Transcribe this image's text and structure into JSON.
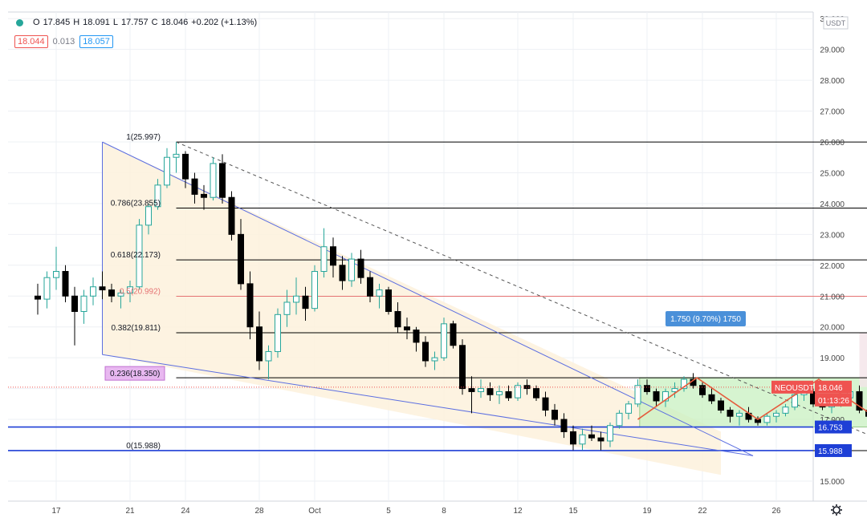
{
  "legend": {
    "o_label": "O",
    "o": "17.845",
    "h_label": "H",
    "h": "18.091",
    "l_label": "L",
    "l": "17.757",
    "c_label": "C",
    "c": "18.046",
    "change": "+0.202 (+1.13%)"
  },
  "bid_ask": {
    "bid": "18.044",
    "spread": "0.013",
    "ask": "18.057"
  },
  "currency": "USDT",
  "price_tags": {
    "symbol": "NEOUSDT",
    "price": "18.046",
    "countdown": "01:13:26",
    "line_upper": "16.753",
    "line_lower": "15.988"
  },
  "measure_label": "1.750 (9.70%) 1750",
  "fib_labels": [
    {
      "value": 25.997,
      "text": "1(25.997)"
    },
    {
      "value": 23.855,
      "text": "0.786(23.855)"
    },
    {
      "value": 22.173,
      "text": "0.618(22.173)"
    },
    {
      "value": 20.992,
      "text": "0.5(20.992)"
    },
    {
      "value": 19.811,
      "text": "0.382(19.811)"
    },
    {
      "value": 18.35,
      "text": "0.236(18.350)"
    },
    {
      "value": 15.988,
      "text": "0(15.988)"
    }
  ],
  "colors": {
    "up": "#26a69a",
    "down": "#000000",
    "fib": "#000000",
    "fib_mid": "#e57373",
    "blue_line": "#1e3fd6",
    "wedge_fill": "#fdf1dc",
    "rect_fill": "#c8f0c0",
    "rect_border": "#9acb8c",
    "zigzag": "#e55b3c",
    "price_tag": "#ef5350",
    "hline_tag": "#1e3fd6",
    "measure_fill": "#f4e4e8",
    "measure_label_bg": "#4a90d9"
  },
  "chart_data": {
    "type": "candlestick",
    "ylim": [
      14.9,
      30.2
    ],
    "y_ticks": [
      "15.000",
      "16.000",
      "17.000",
      "18.000",
      "19.000",
      "20.000",
      "21.000",
      "22.000",
      "23.000",
      "24.000",
      "25.000",
      "26.000",
      "27.000",
      "28.000",
      "29.000",
      "30.000"
    ],
    "x_ticks": [
      "17",
      "21",
      "24",
      "28",
      "Oct",
      "5",
      "8",
      "12",
      "15",
      "19",
      "22",
      "26"
    ],
    "series": [
      {
        "name": "NEOUSDT",
        "values": [
          [
            16,
            21.0,
            21.4,
            20.4,
            20.9
          ],
          [
            16.5,
            20.9,
            21.8,
            20.6,
            21.6
          ],
          [
            17,
            21.6,
            22.6,
            21.2,
            21.8
          ],
          [
            17.5,
            21.8,
            22.0,
            20.8,
            21.0
          ],
          [
            18,
            21.0,
            21.3,
            19.4,
            20.5
          ],
          [
            18.5,
            20.5,
            21.2,
            20.1,
            21.0
          ],
          [
            19,
            21.0,
            21.6,
            20.7,
            21.3
          ],
          [
            19.5,
            21.3,
            21.8,
            20.9,
            21.2
          ],
          [
            20,
            21.2,
            21.4,
            20.8,
            21.0
          ],
          [
            20.5,
            21.0,
            21.2,
            20.6,
            21.1
          ],
          [
            21,
            21.1,
            21.5,
            20.8,
            21.3
          ],
          [
            21.5,
            21.3,
            23.5,
            21.2,
            23.3
          ],
          [
            22,
            23.3,
            24.0,
            23.0,
            23.9
          ],
          [
            22.5,
            23.9,
            24.8,
            23.8,
            24.6
          ],
          [
            23,
            24.6,
            25.8,
            24.5,
            25.5
          ],
          [
            23.5,
            25.5,
            26.0,
            25.0,
            25.6
          ],
          [
            24,
            25.6,
            25.7,
            24.5,
            24.8
          ],
          [
            24.5,
            24.8,
            25.0,
            24.0,
            24.3
          ],
          [
            25,
            24.3,
            24.6,
            23.8,
            24.2
          ],
          [
            25.5,
            24.2,
            25.5,
            24.1,
            25.3
          ],
          [
            26,
            25.3,
            25.6,
            24.0,
            24.2
          ],
          [
            26.5,
            24.2,
            24.4,
            22.8,
            23.0
          ],
          [
            27,
            23.0,
            23.5,
            21.2,
            21.4
          ],
          [
            27.5,
            21.4,
            21.8,
            19.6,
            20.0
          ],
          [
            28,
            20.0,
            20.5,
            18.6,
            18.9
          ],
          [
            28.5,
            18.9,
            19.4,
            18.3,
            19.2
          ],
          [
            29,
            19.2,
            20.6,
            19.0,
            20.4
          ],
          [
            29.5,
            20.4,
            21.2,
            20.0,
            20.8
          ],
          [
            30,
            20.8,
            21.6,
            20.4,
            21.0
          ],
          [
            30.5,
            21.0,
            21.3,
            20.2,
            20.6
          ],
          [
            31,
            20.6,
            22.0,
            20.5,
            21.8
          ],
          [
            31.5,
            21.8,
            23.2,
            21.6,
            22.6
          ],
          [
            32,
            22.6,
            22.9,
            21.6,
            22.0
          ],
          [
            32.5,
            22.0,
            22.3,
            21.2,
            21.5
          ],
          [
            33,
            21.5,
            22.4,
            21.3,
            22.2
          ],
          [
            33.5,
            22.2,
            22.5,
            21.4,
            21.6
          ],
          [
            34,
            21.6,
            21.8,
            20.8,
            21.0
          ],
          [
            34.5,
            21.0,
            21.4,
            20.6,
            21.2
          ],
          [
            35,
            21.2,
            21.3,
            20.4,
            20.5
          ],
          [
            35.5,
            20.5,
            20.8,
            19.8,
            20.0
          ],
          [
            36,
            20.0,
            20.3,
            19.6,
            19.9
          ],
          [
            36.5,
            19.9,
            20.0,
            19.2,
            19.5
          ],
          [
            37,
            19.5,
            19.7,
            18.7,
            18.9
          ],
          [
            37.5,
            18.9,
            19.2,
            18.6,
            19.0
          ],
          [
            38,
            19.0,
            20.3,
            18.9,
            20.1
          ],
          [
            38.5,
            20.1,
            20.2,
            19.3,
            19.4
          ],
          [
            39,
            19.4,
            19.6,
            17.8,
            18.0
          ],
          [
            39.5,
            18.0,
            18.4,
            17.2,
            17.9
          ],
          [
            40,
            17.9,
            18.3,
            17.7,
            18.0
          ],
          [
            40.5,
            18.0,
            18.2,
            17.6,
            17.8
          ],
          [
            41,
            17.8,
            18.1,
            17.5,
            17.9
          ],
          [
            41.5,
            17.9,
            18.1,
            17.6,
            17.7
          ],
          [
            42,
            17.7,
            18.2,
            17.6,
            18.1
          ],
          [
            42.5,
            18.1,
            18.3,
            17.8,
            18.0
          ],
          [
            43,
            18.0,
            18.1,
            17.6,
            17.7
          ],
          [
            43.5,
            17.7,
            17.9,
            17.1,
            17.3
          ],
          [
            44,
            17.3,
            17.5,
            16.8,
            17.0
          ],
          [
            44.5,
            17.0,
            17.2,
            16.4,
            16.6
          ],
          [
            45,
            16.6,
            16.8,
            16.0,
            16.2
          ],
          [
            45.5,
            16.2,
            16.7,
            16.0,
            16.5
          ],
          [
            46,
            16.5,
            16.8,
            16.3,
            16.4
          ],
          [
            46.5,
            16.4,
            16.6,
            16.0,
            16.3
          ],
          [
            47,
            16.3,
            16.9,
            16.1,
            16.8
          ],
          [
            47.5,
            16.8,
            17.3,
            16.7,
            17.2
          ],
          [
            48,
            17.2,
            17.6,
            17.0,
            17.5
          ],
          [
            48.5,
            17.5,
            18.3,
            17.4,
            18.1
          ],
          [
            49,
            18.1,
            18.3,
            17.8,
            17.9
          ],
          [
            49.5,
            17.9,
            18.0,
            17.4,
            17.6
          ],
          [
            50,
            17.6,
            18.0,
            17.4,
            17.9
          ],
          [
            50.5,
            17.9,
            18.2,
            17.7,
            18.0
          ],
          [
            51,
            18.0,
            18.4,
            17.9,
            18.3
          ],
          [
            51.5,
            18.3,
            18.5,
            18.0,
            18.1
          ],
          [
            52,
            18.1,
            18.2,
            17.7,
            17.8
          ],
          [
            52.5,
            17.8,
            18.0,
            17.5,
            17.6
          ],
          [
            53,
            17.6,
            17.7,
            17.2,
            17.3
          ],
          [
            53.5,
            17.3,
            17.4,
            16.9,
            17.1
          ],
          [
            54,
            17.1,
            17.3,
            16.8,
            17.2
          ],
          [
            54.5,
            17.2,
            17.4,
            16.9,
            17.0
          ],
          [
            55,
            17.0,
            17.1,
            16.8,
            16.9
          ],
          [
            55.5,
            16.9,
            17.2,
            16.8,
            17.1
          ],
          [
            56,
            17.1,
            17.3,
            16.9,
            17.2
          ],
          [
            56.5,
            17.2,
            17.5,
            17.1,
            17.4
          ],
          [
            57,
            17.4,
            17.9,
            17.3,
            17.8
          ],
          [
            57.5,
            17.8,
            18.1,
            17.6,
            17.9
          ],
          [
            58,
            17.9,
            18.0,
            17.4,
            17.5
          ],
          [
            58.5,
            17.5,
            17.7,
            17.3,
            17.4
          ],
          [
            59,
            17.4,
            17.6,
            17.2,
            17.5
          ],
          [
            59.5,
            17.5,
            17.8,
            17.4,
            17.7
          ],
          [
            60,
            17.7,
            18.0,
            17.5,
            17.9
          ],
          [
            60.5,
            17.9,
            18.1,
            17.2,
            17.3
          ],
          [
            61,
            17.3,
            17.6,
            16.9,
            17.1
          ],
          [
            61.5,
            17.1,
            18.0,
            17.0,
            17.8
          ],
          [
            62,
            17.8,
            18.1,
            17.7,
            18.0
          ],
          [
            62.5,
            17.8,
            18.1,
            17.8,
            18.05
          ]
        ]
      }
    ],
    "fib_levels": [
      {
        "ratio": 1,
        "value": 25.997
      },
      {
        "ratio": 0.786,
        "value": 23.855
      },
      {
        "ratio": 0.618,
        "value": 22.173
      },
      {
        "ratio": 0.5,
        "value": 20.992
      },
      {
        "ratio": 0.382,
        "value": 19.811
      },
      {
        "ratio": 0.236,
        "value": 18.35
      },
      {
        "ratio": 0,
        "value": 15.988
      }
    ],
    "horizontal_lines": [
      16.753,
      15.988
    ],
    "range_box": {
      "top": 18.35,
      "bottom": 16.753
    },
    "wedge": {
      "start": [
        19.5,
        25.997
      ],
      "upper_end": [
        53,
        16.6
      ],
      "lower_start": [
        19.5,
        19.1
      ],
      "lower_end": [
        53,
        15.2
      ]
    },
    "dashed_trend": {
      "from": [
        23.5,
        25.997
      ],
      "to": [
        63,
        15.988
      ]
    },
    "zigzag": [
      [
        48.5,
        17.0
      ],
      [
        51.7,
        18.35
      ],
      [
        55,
        17.0
      ],
      [
        58.3,
        18.3
      ],
      [
        62.2,
        16.75
      ],
      [
        63.5,
        18.1
      ]
    ],
    "measure": {
      "from": 18.05,
      "to": 19.8
    },
    "last_price": 18.046
  }
}
